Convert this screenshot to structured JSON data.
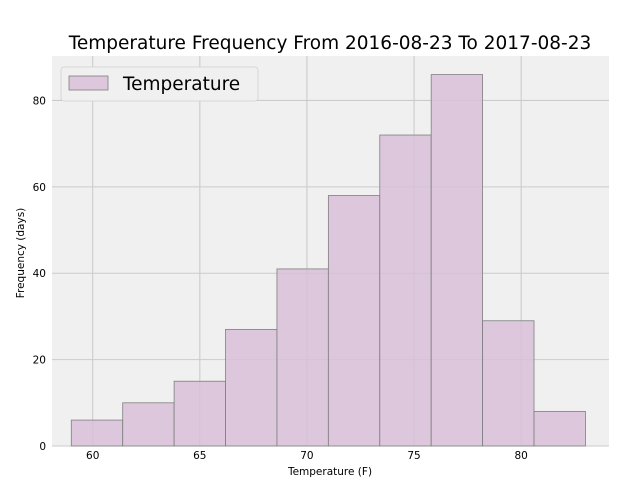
{
  "chart_data": {
    "type": "bar",
    "title": "Temperature Frequency From 2016-08-23 To 2017-08-23",
    "xlabel": "Temperature (F)",
    "ylabel": "Frequency (days)",
    "xlim": [
      58.1,
      84.1
    ],
    "ylim": [
      0,
      90.3
    ],
    "xticks": [
      60,
      65,
      70,
      75,
      80
    ],
    "yticks": [
      0,
      20,
      40,
      60,
      80
    ],
    "grid": true,
    "legend_position": "top-left",
    "bin_edges": [
      59.0,
      61.4,
      63.8,
      66.2,
      68.6,
      71.0,
      73.4,
      75.8,
      78.2,
      80.6,
      83.0
    ],
    "series": [
      {
        "name": "Temperature",
        "values": [
          6,
          10,
          15,
          27,
          41,
          58,
          72,
          86,
          29,
          8
        ]
      }
    ],
    "colors": {
      "bar_fill": "#d8bfd8",
      "bar_edge": "#7f7f7f",
      "plot_background": "#f0f0f0",
      "grid": "#cbcbcb"
    }
  }
}
